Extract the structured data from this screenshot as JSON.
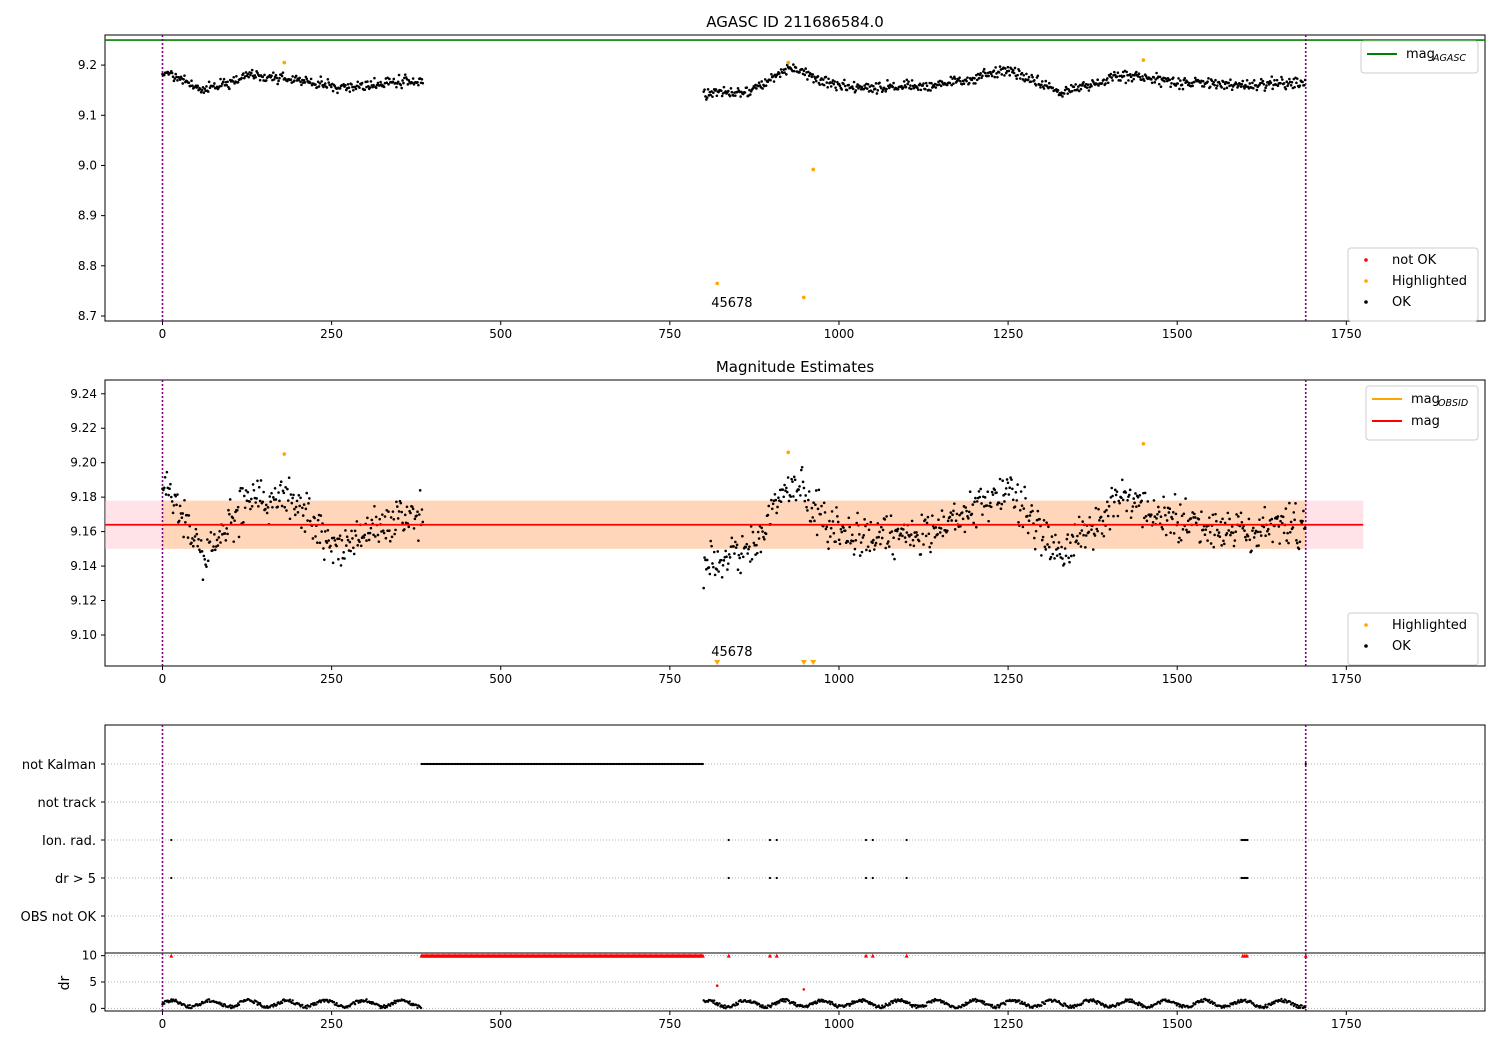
{
  "chart_data": [
    {
      "type": "scatter",
      "title": "AGASC ID 211686584.0",
      "xlim": [
        -85,
        1955
      ],
      "ylim": [
        8.69,
        9.26
      ],
      "xticks": [
        0,
        250,
        500,
        750,
        1000,
        1250,
        1500,
        1750
      ],
      "yticks": [
        8.7,
        8.8,
        8.9,
        9.0,
        9.1,
        9.2
      ],
      "vlines": [
        0,
        1690
      ],
      "hline": {
        "name": "mag_AGASC",
        "value": 9.25,
        "color": "#008000"
      },
      "legend_lines": [
        {
          "label": "mag",
          "sub": "AGASC",
          "color": "#008000"
        }
      ],
      "legend_points": [
        {
          "label": "not OK",
          "color": "#ff0000"
        },
        {
          "label": "Highlighted",
          "color": "#ffa500"
        },
        {
          "label": "OK",
          "color": "#000000"
        }
      ],
      "segments": [
        {
          "x0": 0,
          "x1": 385,
          "profile": [
            [
              0,
              9.19
            ],
            [
              60,
              9.15
            ],
            [
              130,
              9.18
            ],
            [
              200,
              9.17
            ],
            [
              260,
              9.155
            ],
            [
              330,
              9.165
            ],
            [
              385,
              9.17
            ]
          ],
          "noise": 0.011
        },
        {
          "x0": 800,
          "x1": 1690,
          "profile": [
            [
              800,
              9.14
            ],
            [
              870,
              9.15
            ],
            [
              930,
              9.195
            ],
            [
              990,
              9.16
            ],
            [
              1050,
              9.155
            ],
            [
              1150,
              9.16
            ],
            [
              1250,
              9.19
            ],
            [
              1330,
              9.145
            ],
            [
              1420,
              9.18
            ],
            [
              1500,
              9.165
            ],
            [
              1600,
              9.16
            ],
            [
              1690,
              9.165
            ]
          ],
          "noise": 0.011
        }
      ],
      "highlighted": [
        [
          180,
          9.205
        ],
        [
          925,
          9.205
        ],
        [
          1450,
          9.21
        ],
        [
          820,
          8.765
        ],
        [
          948,
          8.737
        ],
        [
          962,
          8.992
        ]
      ],
      "annotations": [
        {
          "x": 820,
          "y": 8.7,
          "text": "45678"
        }
      ]
    },
    {
      "type": "scatter",
      "title": "Magnitude Estimates",
      "xlim": [
        -85,
        1955
      ],
      "ylim": [
        9.082,
        9.248
      ],
      "xticks": [
        0,
        250,
        500,
        750,
        1000,
        1250,
        1500,
        1750
      ],
      "yticks": [
        9.1,
        9.12,
        9.14,
        9.16,
        9.18,
        9.2,
        9.22,
        9.24
      ],
      "vlines": [
        0,
        1690
      ],
      "mag": 9.164,
      "mag_band": [
        9.15,
        9.178
      ],
      "mag_obsid": {
        "value": 9.164,
        "band": [
          9.15,
          9.178
        ]
      },
      "legend_lines": [
        {
          "label": "mag",
          "sub": "OBSID",
          "color": "#ffa500"
        },
        {
          "label": "mag",
          "sub": "",
          "color": "#ff0000"
        }
      ],
      "legend_points": [
        {
          "label": "Highlighted",
          "color": "#ffa500"
        },
        {
          "label": "OK",
          "color": "#000000"
        }
      ],
      "segments": [
        {
          "x0": 0,
          "x1": 385,
          "profile": [
            [
              0,
              9.19
            ],
            [
              60,
              9.145
            ],
            [
              130,
              9.18
            ],
            [
              200,
              9.175
            ],
            [
              260,
              9.15
            ],
            [
              330,
              9.165
            ],
            [
              385,
              9.17
            ]
          ],
          "noise": 0.012
        },
        {
          "x0": 800,
          "x1": 1690,
          "profile": [
            [
              800,
              9.14
            ],
            [
              870,
              9.15
            ],
            [
              930,
              9.19
            ],
            [
              990,
              9.16
            ],
            [
              1050,
              9.155
            ],
            [
              1150,
              9.16
            ],
            [
              1250,
              9.185
            ],
            [
              1330,
              9.145
            ],
            [
              1420,
              9.18
            ],
            [
              1500,
              9.165
            ],
            [
              1600,
              9.16
            ],
            [
              1690,
              9.165
            ]
          ],
          "noise": 0.012
        }
      ],
      "highlighted": [
        [
          180,
          9.205
        ],
        [
          925,
          9.206
        ],
        [
          1450,
          9.211
        ]
      ],
      "offscale_markers": [
        820,
        948,
        962
      ],
      "annotations": [
        {
          "x": 820,
          "y": 9.085,
          "text": "45678"
        }
      ]
    },
    {
      "type": "scatter",
      "title": "",
      "xlim": [
        -85,
        1955
      ],
      "xticks": [
        0,
        250,
        500,
        750,
        1000,
        1250,
        1500,
        1750
      ],
      "vlines": [
        0,
        1690
      ],
      "flag_rows": [
        "not Kalman",
        "not track",
        "Ion. rad.",
        "dr > 5",
        "OBS not OK"
      ],
      "flags": {
        "not Kalman": {
          "ranges": [
            [
              383,
              800
            ]
          ],
          "points": [
            1690
          ]
        },
        "not track": {
          "ranges": [],
          "points": []
        },
        "Ion. rad.": {
          "ranges": [
            [
              1595,
              1605
            ]
          ],
          "points": [
            13,
            837,
            898,
            908,
            1040,
            1050,
            1100
          ]
        },
        "dr > 5": {
          "ranges": [
            [
              1595,
              1605
            ]
          ],
          "points": [
            13,
            837,
            898,
            908,
            1040,
            1050,
            1100
          ]
        },
        "OBS not OK": {
          "ranges": [],
          "points": []
        }
      },
      "dr_ylabel": "dr",
      "dr_ylim": [
        -0.5,
        10.5
      ],
      "dr_yticks": [
        0,
        5,
        10
      ],
      "dr_segments": [
        {
          "x0": 0,
          "x1": 383
        },
        {
          "x0": 800,
          "x1": 1690
        }
      ],
      "dr_capped_range": [
        383,
        800
      ],
      "dr_capped_points": [
        13,
        837,
        898,
        908,
        1040,
        1050,
        1100,
        1597,
        1600,
        1603,
        1690
      ],
      "dr_outliers": [
        [
          820,
          4.3
        ],
        [
          948,
          3.6
        ]
      ]
    }
  ]
}
